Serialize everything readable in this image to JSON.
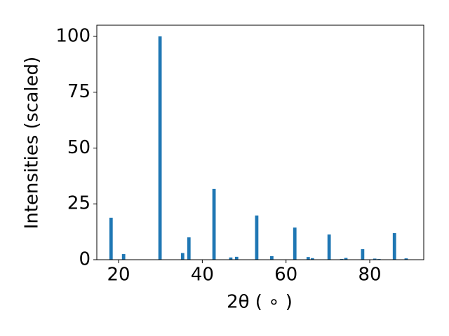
{
  "chart_data": {
    "type": "bar",
    "xlabel": "2θ ( ∘ )",
    "ylabel": "Intensities (scaled)",
    "x": [
      18.2,
      21.2,
      29.9,
      35.3,
      36.8,
      42.8,
      46.8,
      48.2,
      53.0,
      56.6,
      62.1,
      65.3,
      66.3,
      70.3,
      73.3,
      74.3,
      78.3,
      81.2,
      82.2,
      85.9,
      88.7
    ],
    "values": [
      18.8,
      2.5,
      100,
      3.0,
      10.0,
      31.7,
      1.0,
      1.3,
      19.8,
      1.6,
      14.4,
      1.2,
      0.7,
      11.3,
      0.3,
      0.8,
      4.7,
      0.5,
      0.3,
      11.9,
      0.6
    ],
    "color": "#1f77b4",
    "xlim": [
      14.8,
      92.9
    ],
    "xticks": [
      20,
      40,
      60,
      80
    ],
    "ylim": [
      0,
      105
    ],
    "yticks": [
      0,
      25,
      50,
      75,
      100
    ],
    "grid": false
  }
}
